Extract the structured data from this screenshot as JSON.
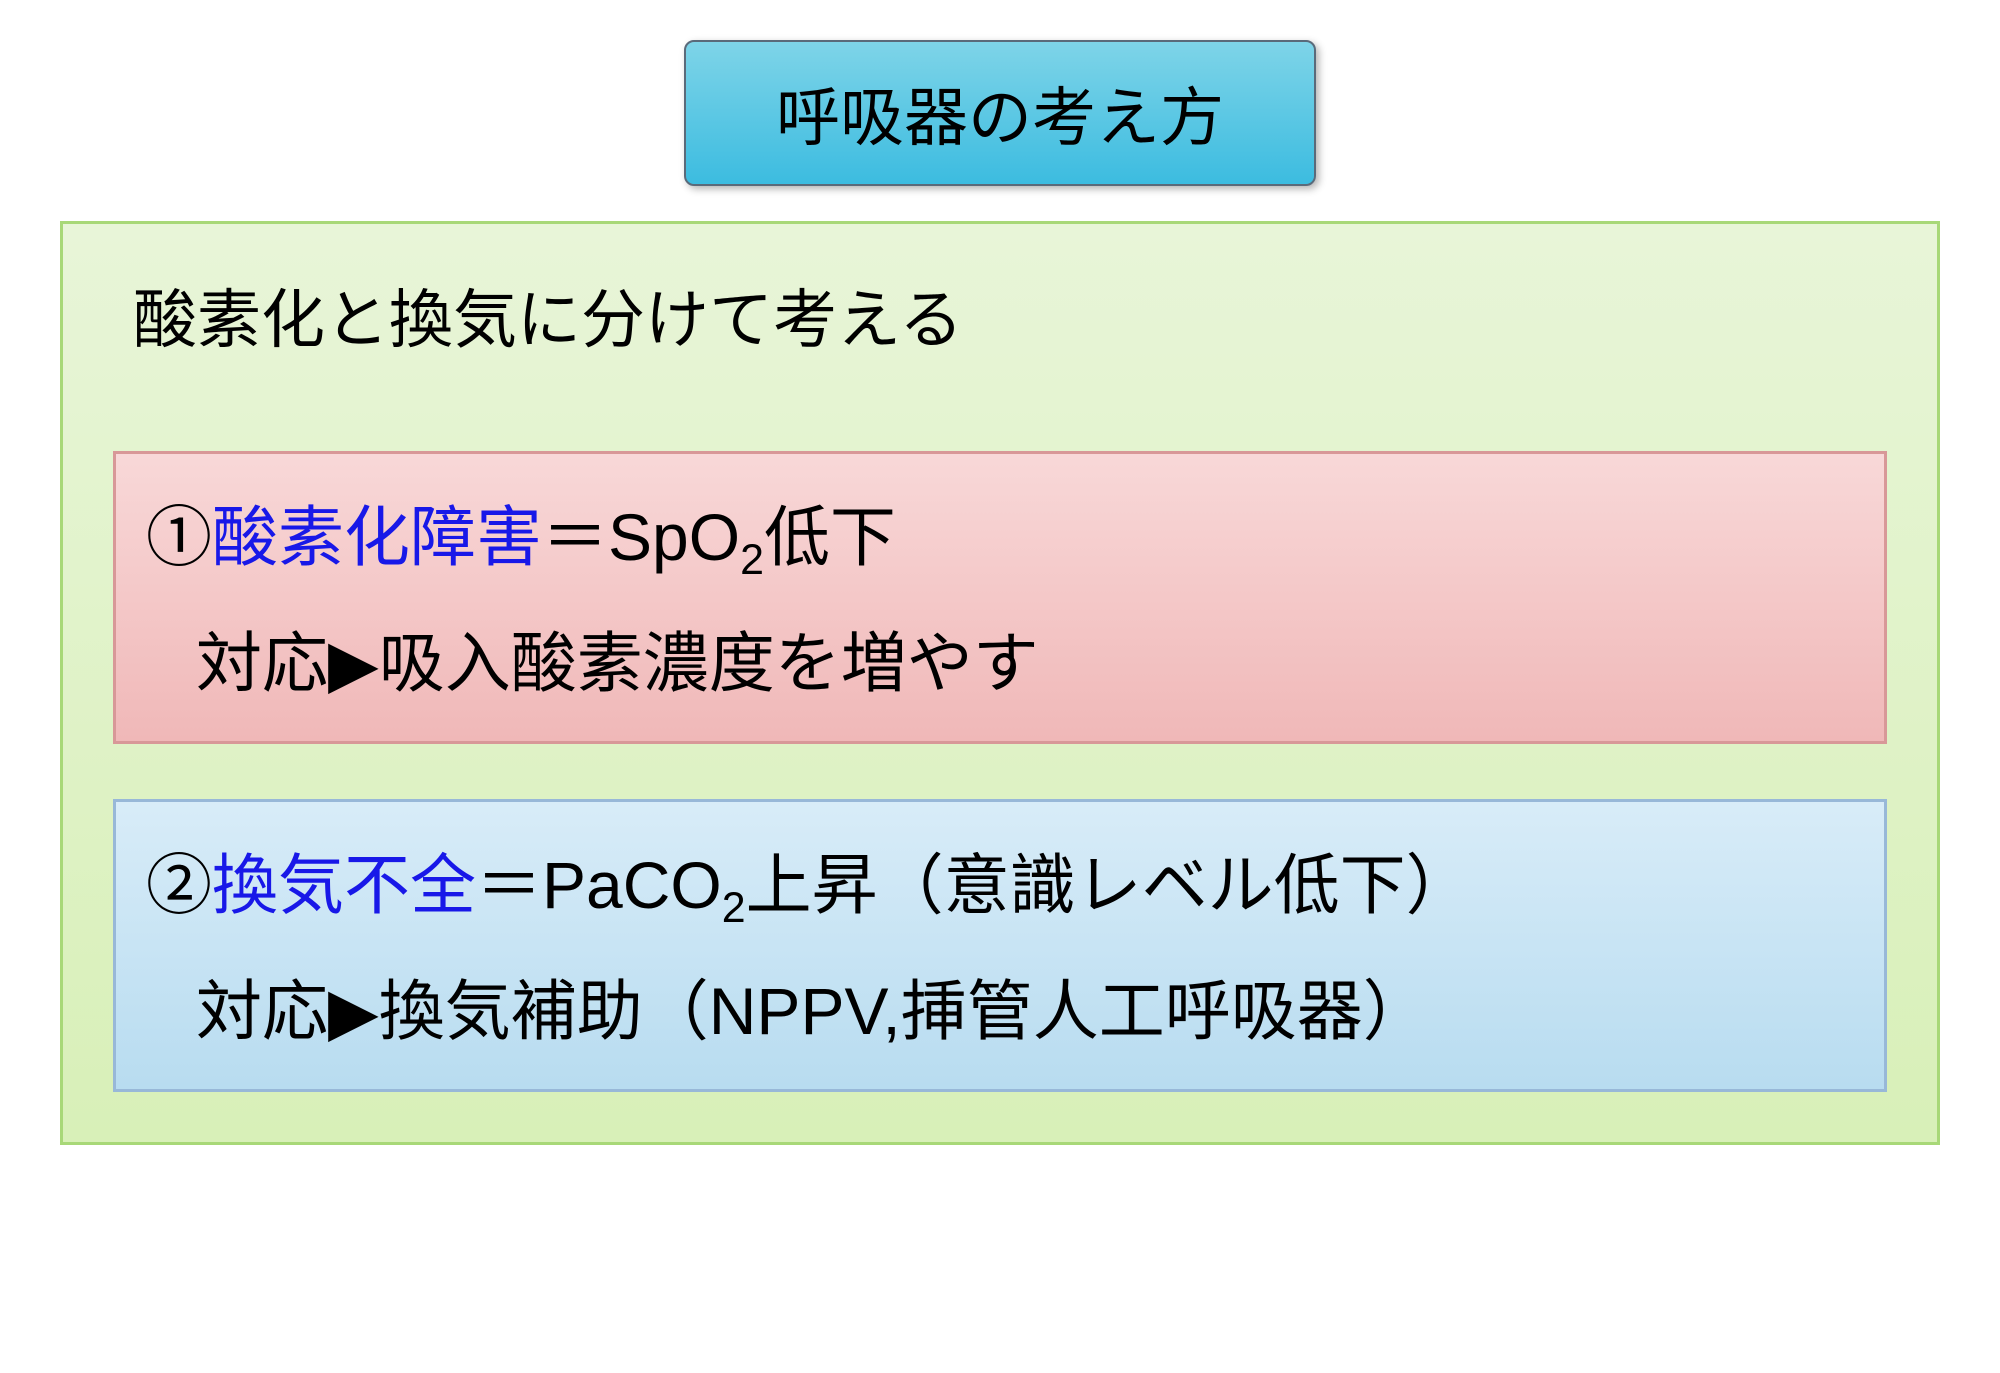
{
  "title": {
    "text": "呼吸器の考え方",
    "background_gradient_top": "#7ed4e8",
    "background_gradient_bottom": "#3cbce0",
    "border_color": "#5a6a7a",
    "font_size": 64,
    "text_color": "#000000"
  },
  "main_container": {
    "background_gradient_top": "#e8f5d8",
    "background_gradient_bottom": "#d8f0b8",
    "border_color": "#a8d878"
  },
  "subtitle": {
    "text": "酸素化と換気に分けて考える",
    "font_size": 64,
    "text_color": "#000000"
  },
  "box1": {
    "type": "infographic",
    "background_gradient_top": "#f8d8d8",
    "background_gradient_bottom": "#f0b8b8",
    "border_color": "#d89898",
    "number": "①",
    "highlight_text": "酸素化障害",
    "line1_suffix_before_sub": "＝SpO",
    "subscript": "2",
    "line1_suffix_after_sub": "低下",
    "line2_prefix": "対応",
    "triangle": "▶",
    "line2_suffix": "吸入酸素濃度を増やす",
    "highlight_color": "#1818e8",
    "font_size": 66
  },
  "box2": {
    "type": "infographic",
    "background_gradient_top": "#d8ecf8",
    "background_gradient_bottom": "#b8dcf0",
    "border_color": "#98b8d8",
    "number": "②",
    "highlight_text": "換気不全",
    "line1_suffix_before_sub": "＝PaCO",
    "subscript": "2",
    "line1_suffix_after_sub": "上昇（意識レベル低下）",
    "line2_prefix": "対応",
    "triangle": "▶",
    "line2_suffix": "換気補助（NPPV,挿管人工呼吸器）",
    "highlight_color": "#1818e8",
    "font_size": 66
  }
}
